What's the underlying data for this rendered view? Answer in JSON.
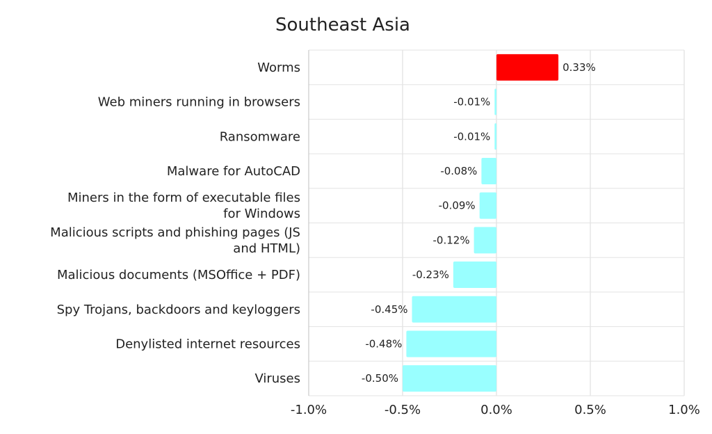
{
  "chart_data": {
    "type": "bar",
    "orientation": "horizontal",
    "title": "Southeast Asia",
    "categories": [
      "Worms",
      "Web miners running in browsers",
      "Ransomware",
      "Malware for AutoCAD",
      "Miners in the form of executable files for Windows",
      "Malicious scripts and phishing pages (JS and HTML)",
      "Malicious documents (MSOffice + PDF)",
      "Spy Trojans, backdoors and keyloggers",
      "Denylisted internet resources",
      "Viruses"
    ],
    "category_lines": [
      [
        "Worms"
      ],
      [
        "Web miners running in browsers"
      ],
      [
        "Ransomware"
      ],
      [
        "Malware for AutoCAD"
      ],
      [
        "Miners in the form of executable files",
        "for Windows"
      ],
      [
        "Malicious scripts and phishing pages (JS",
        "and HTML)"
      ],
      [
        "Malicious documents (MSOffice + PDF)"
      ],
      [
        "Spy Trojans, backdoors and keyloggers"
      ],
      [
        "Denylisted internet resources"
      ],
      [
        "Viruses"
      ]
    ],
    "values": [
      0.33,
      -0.01,
      -0.01,
      -0.08,
      -0.09,
      -0.12,
      -0.23,
      -0.45,
      -0.48,
      -0.5
    ],
    "data_labels": [
      "0.33%",
      "-0.01%",
      "-0.01%",
      "-0.08%",
      "-0.09%",
      "-0.12%",
      "-0.23%",
      "-0.45%",
      "-0.48%",
      "-0.50%"
    ],
    "xlim": [
      -1.0,
      1.0
    ],
    "xticks": [
      -1.0,
      -0.5,
      0.0,
      0.5,
      1.0
    ],
    "xtick_labels": [
      "-1.0%",
      "-0.5%",
      "0.0%",
      "0.5%",
      "1.0%"
    ],
    "grid": true,
    "colors": {
      "positive": "#ff0000",
      "negative": "#99ffff"
    }
  }
}
